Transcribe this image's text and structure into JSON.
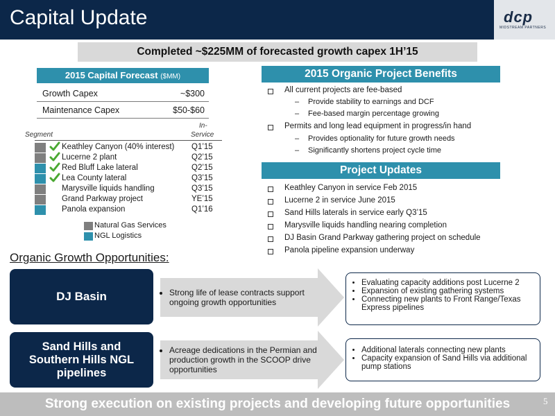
{
  "header": {
    "title": "Capital Update",
    "logo_text": "dcp",
    "logo_subtext": "MIDSTREAM PARTNERS"
  },
  "banner": "Completed ~$225MM of forecasted growth capex 1H’15",
  "forecast": {
    "title": "2015 Capital Forecast",
    "unit": "($MM)",
    "rows": [
      {
        "label": "Growth Capex",
        "value": "~$300"
      },
      {
        "label": "Maintenance Capex",
        "value": "$50-$60"
      }
    ]
  },
  "segments": {
    "col_segment": "Segment",
    "col_inservice_1": "In-",
    "col_inservice_2": "Service",
    "rows": [
      {
        "name": "Keathley Canyon (40% interest)",
        "date": "Q1’15",
        "type": "gas",
        "checked": true
      },
      {
        "name": "Lucerne 2 plant",
        "date": "Q2’15",
        "type": "gas",
        "checked": true
      },
      {
        "name": "Red Bluff Lake lateral",
        "date": "Q2’15",
        "type": "ngl",
        "checked": true
      },
      {
        "name": "Lea County lateral",
        "date": "Q3’15",
        "type": "ngl",
        "checked": true
      },
      {
        "name": "Marysville liquids handling",
        "date": "Q3’15",
        "type": "gas",
        "checked": false
      },
      {
        "name": "Grand Parkway project",
        "date": "YE’15",
        "type": "gas",
        "checked": false
      },
      {
        "name": "Panola expansion",
        "date": "Q1’16",
        "type": "ngl",
        "checked": false
      }
    ],
    "legend": [
      {
        "label": "Natural Gas Services",
        "color": "#7f7f7f"
      },
      {
        "label": "NGL Logistics",
        "color": "#2e90ac"
      }
    ]
  },
  "benefits": {
    "title": "2015 Organic Project Benefits",
    "b1": "All current projects are fee-based",
    "b1_s1": "Provide stability to earnings and DCF",
    "b1_s2": "Fee-based margin percentage growing",
    "b2": "Permits and long lead equipment in progress/in hand",
    "b2_s1": "Provides optionality for future growth needs",
    "b2_s2": "Significantly shortens project cycle time"
  },
  "updates": {
    "title": "Project Updates",
    "items": [
      "Keathley Canyon in service Feb 2015",
      "Lucerne 2 in service June 2015",
      "Sand Hills laterals in service early Q3’15",
      "Marysville liquids handling nearing completion",
      "DJ Basin Grand Parkway gathering project on schedule",
      "Panola pipeline expansion underway"
    ]
  },
  "opportunities": {
    "title": "Organic Growth Opportunities:",
    "dj": {
      "name": "DJ Basin",
      "middle": "Strong life of lease contracts support ongoing growth opportunities",
      "r1": "Evaluating capacity additions post Lucerne 2",
      "r2": "Expansion of existing gathering systems",
      "r3": "Connecting new plants to Front Range/Texas Express pipelines"
    },
    "sh": {
      "name_l1": "Sand Hills and",
      "name_l2": "Southern Hills NGL",
      "name_l3": "pipelines",
      "middle": "Acreage dedications in the Permian and production growth in the SCOOP drive opportunities",
      "r1": "Additional laterals connecting  new plants",
      "r2": "Capacity expansion of Sand Hills via additional pump stations"
    }
  },
  "footer": "Strong execution on existing projects and developing future opportunities",
  "page_number": "5",
  "colors": {
    "navy": "#0c2749",
    "teal": "#2e90ac",
    "gray": "#7f7f7f",
    "check": "#4aa832"
  }
}
